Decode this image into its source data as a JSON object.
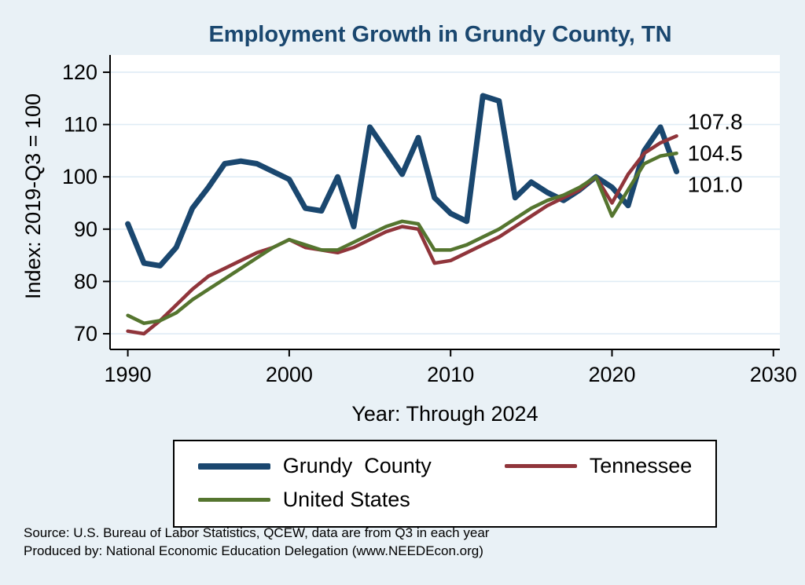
{
  "page": {
    "background_color": "#e9f1f6"
  },
  "chart_data": {
    "type": "line",
    "title": "Employment Growth in Grundy County, TN",
    "title_color": "#1a476f",
    "xlabel": "Year: Through 2024",
    "ylabel": "Index: 2019-Q3 = 100",
    "xlim": [
      1988.9,
      2030.4
    ],
    "ylim": [
      67,
      123.3
    ],
    "x_ticks": [
      1990,
      2000,
      2010,
      2020,
      2030
    ],
    "y_ticks": [
      70,
      80,
      90,
      100,
      110,
      120
    ],
    "grid": true,
    "legend_position": "bottom",
    "plot_background": "#ffffff",
    "x": [
      1990,
      1991,
      1992,
      1993,
      1994,
      1995,
      1996,
      1997,
      1998,
      1999,
      2000,
      2001,
      2002,
      2003,
      2004,
      2005,
      2006,
      2007,
      2008,
      2009,
      2010,
      2011,
      2012,
      2013,
      2014,
      2015,
      2016,
      2017,
      2018,
      2019,
      2020,
      2021,
      2022,
      2023,
      2024
    ],
    "series": [
      {
        "name": "Grundy County",
        "color": "#1a476f",
        "width": 7,
        "values": [
          91,
          83.5,
          83,
          86.5,
          94,
          98,
          102.5,
          103,
          102.5,
          101,
          99.5,
          94,
          93.5,
          100,
          90.5,
          109.5,
          105,
          100.5,
          107.5,
          96,
          93,
          91.5,
          115.5,
          114.5,
          96,
          99,
          97,
          95.5,
          97.5,
          100,
          98,
          94.5,
          105,
          109.5,
          101
        ]
      },
      {
        "name": "Tennessee",
        "color": "#90353b",
        "width": 4.5,
        "values": [
          70.5,
          70,
          72.5,
          75.5,
          78.5,
          81,
          82.5,
          84,
          85.5,
          86.5,
          88,
          86.5,
          86,
          85.5,
          86.5,
          88,
          89.5,
          90.5,
          90,
          83.5,
          84,
          85.5,
          87,
          88.5,
          90.5,
          92.5,
          94.5,
          96,
          97.5,
          100,
          95,
          100.5,
          104.5,
          106.5,
          107.8
        ]
      },
      {
        "name": "United States",
        "color": "#55752f",
        "width": 4.5,
        "values": [
          73.5,
          72,
          72.5,
          74,
          76.5,
          78.5,
          80.5,
          82.5,
          84.5,
          86.5,
          88,
          87,
          86,
          86,
          87.5,
          89,
          90.5,
          91.5,
          91,
          86,
          86,
          87,
          88.5,
          90,
          92,
          94,
          95.5,
          96.5,
          98,
          100,
          92.5,
          97.5,
          102.5,
          104,
          104.5
        ]
      }
    ],
    "end_labels": [
      {
        "text": "107.8",
        "series": "Tennessee"
      },
      {
        "text": "104.5",
        "series": "United States"
      },
      {
        "text": "101.0",
        "series": "Grundy County"
      }
    ]
  },
  "legend": {
    "items": [
      {
        "label": "Grundy  County"
      },
      {
        "label": "Tennessee"
      },
      {
        "label": "United States"
      }
    ]
  },
  "footer": {
    "source_line": "Source: U.S. Bureau of Labor Statistics, QCEW, data are from Q3 in each year",
    "produced_line": "Produced by: National Economic Education Delegation (www.NEEDEcon.org)"
  }
}
